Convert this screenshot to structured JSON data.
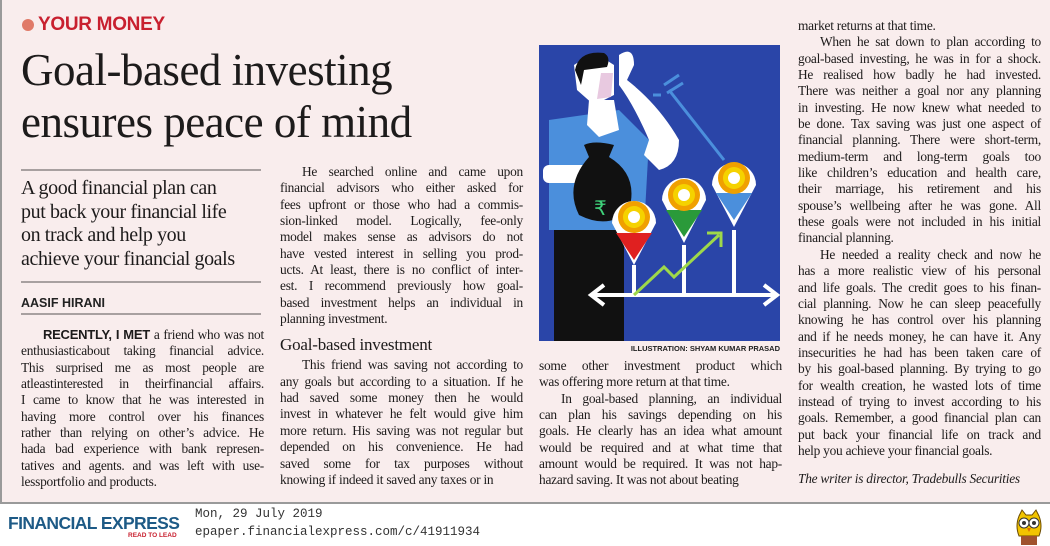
{
  "section": "YOUR MONEY",
  "headline": [
    "Goal-based investing",
    "ensures peace of mind"
  ],
  "deck": [
    "A good financial plan can",
    "put back your financial life",
    "on track and help you",
    "achieve your financial goals"
  ],
  "byline": "AASIF HIRANI",
  "colors": {
    "section": "#c8202f",
    "background": "#f9eded",
    "illustration_bg": "#2a45a8",
    "brand": "#1d5a86"
  },
  "columns": [
    {
      "paragraphs": [
        {
          "lead": "RECENTLY, I MET",
          "lines": [
            "a friend who was not",
            "enthusiasticabout taking financial advice.",
            "This surprised me as most people are",
            "atleastinterested in theirfinancial affairs.",
            "I came to know that he was interested in",
            "having more control over his finances",
            "rather than relying on other’s advice. He",
            "hada bad experience with bank represen-",
            "tatives and agents. and was left with use-",
            "lessportfolio and products."
          ]
        }
      ]
    },
    {
      "paragraphs": [
        {
          "lines": [
            "He searched online and came upon",
            "financial advisors who either asked for",
            "fees upfront or those who had a commis-",
            "sion-linked model. Logically, fee-only",
            "model makes sense as advisors do not",
            "have vested interest in selling you prod-",
            "ucts. At least, there is no conflict of inter-",
            "est. I recommend previously how goal-",
            "based investment helps an individual in",
            "planning investment."
          ]
        }
      ],
      "subhead": "Goal-based investment",
      "paragraphs2": [
        {
          "lines": [
            "This friend was saving not according to",
            "any goals but according to a situation. If he",
            "had saved some money then he would",
            "invest in whatever he felt would give him",
            "more return. His saving was not regular but",
            "depended on his convenience. He had",
            "saved some for tax purposes without",
            "knowing if indeed it saved any taxes or in"
          ]
        }
      ]
    },
    {
      "paragraphs": [
        {
          "noindent": true,
          "lines": [
            "some other investment product which",
            "was offering more return at that time."
          ]
        },
        {
          "lines": [
            "In goal-based planning, an individual",
            "can plan his savings depending on his",
            "goals. He clearly has an idea what amount",
            "would be required and at what time that",
            "amount would be required. It was not hap-",
            "hazard saving. It was not about beating"
          ]
        }
      ]
    },
    {
      "paragraphs": [
        {
          "noindent": true,
          "lines": [
            "market returns at that time."
          ]
        },
        {
          "lines": [
            "When he sat down to plan according to",
            "goal-based investing, he was in for a shock.",
            "He realised how badly he had invested.",
            "There was neither a goal nor any planning",
            "in investing. He now knew what needed to",
            "be done. Tax saving was just one aspect of",
            "financial planning. There were short-term,",
            "medium-term and long-term goals too",
            "like children’s education and health care,",
            "their marriage, his retirement and his",
            "spouse’s wellbeing after he was gone. All",
            "these goals were not included in his initial",
            "financial planning."
          ]
        },
        {
          "lines": [
            "He needed a reality check and now he",
            "has a more realistic view of his personal",
            "and life goals. The credit goes to his finan-",
            "cial planning. Now he can sleep peacefully",
            "knowing he has control over his planning",
            "and if he needs money, he can have it. Any",
            "insecurities he had has been taken care of",
            "by his goal-based planning. By trying to go",
            "for wealth creation, he wasted lots of time",
            "instead of trying to invest according to his",
            "goals. Remember, a good financial plan can",
            "put back your financial life on track and",
            "help you achieve your financial goals."
          ]
        }
      ],
      "signature": "The writer is director, Tradebulls Securities"
    }
  ],
  "illustration_credit": "ILLUSTRATION: SHYAM KUMAR PRASAD",
  "footer": {
    "logo": "FINANCIAL EXPRESS",
    "tagline": "READ TO LEAD",
    "date": "Mon, 29 July 2019",
    "url": "epaper.financialexpress.com/c/41911934",
    "mascot_icon": "owl-icon"
  }
}
